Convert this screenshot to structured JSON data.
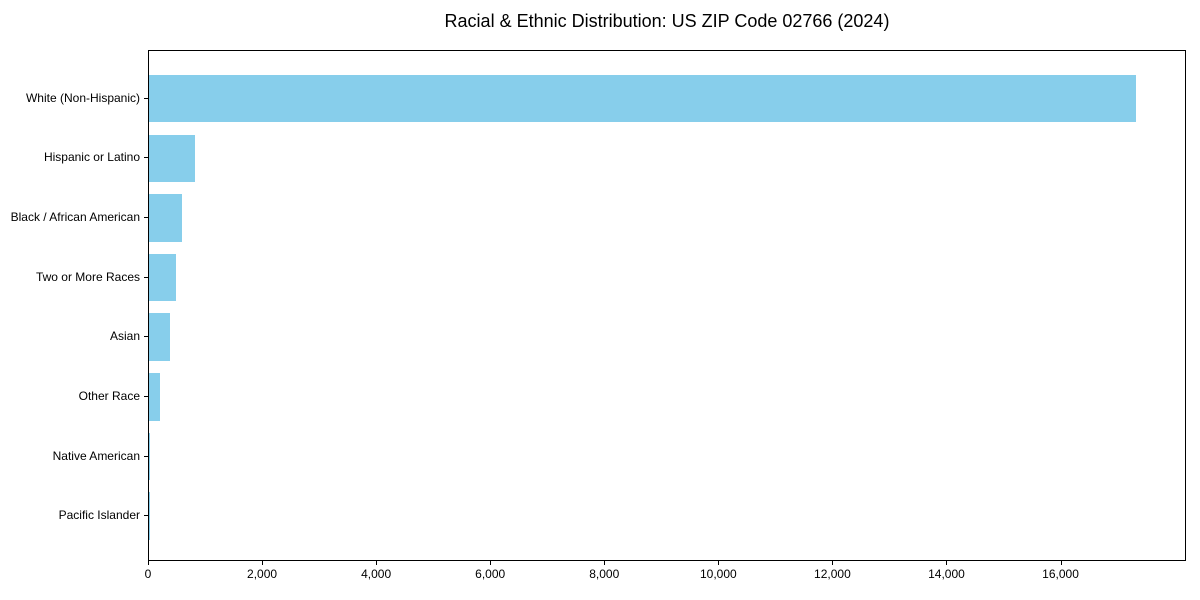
{
  "chart_data": {
    "type": "bar",
    "orientation": "horizontal",
    "title": "Racial & Ethnic Distribution: US ZIP Code 02766 (2024)",
    "categories": [
      "White (Non-Hispanic)",
      "Hispanic or Latino",
      "Black / African American",
      "Two or More Races",
      "Asian",
      "Other Race",
      "Native American",
      "Pacific Islander"
    ],
    "values": [
      17310,
      805,
      575,
      465,
      360,
      190,
      15,
      5
    ],
    "xlabel": "",
    "ylabel": "",
    "xlim": [
      0,
      18200
    ],
    "xticks": [
      0,
      2000,
      4000,
      6000,
      8000,
      10000,
      12000,
      14000,
      16000
    ],
    "xtick_labels": [
      "0",
      "2,000",
      "4,000",
      "6,000",
      "8,000",
      "10,000",
      "12,000",
      "14,000",
      "16,000"
    ],
    "bar_color": "#87CEEB",
    "axis_color": "#000000",
    "grid": false,
    "legend": null
  }
}
